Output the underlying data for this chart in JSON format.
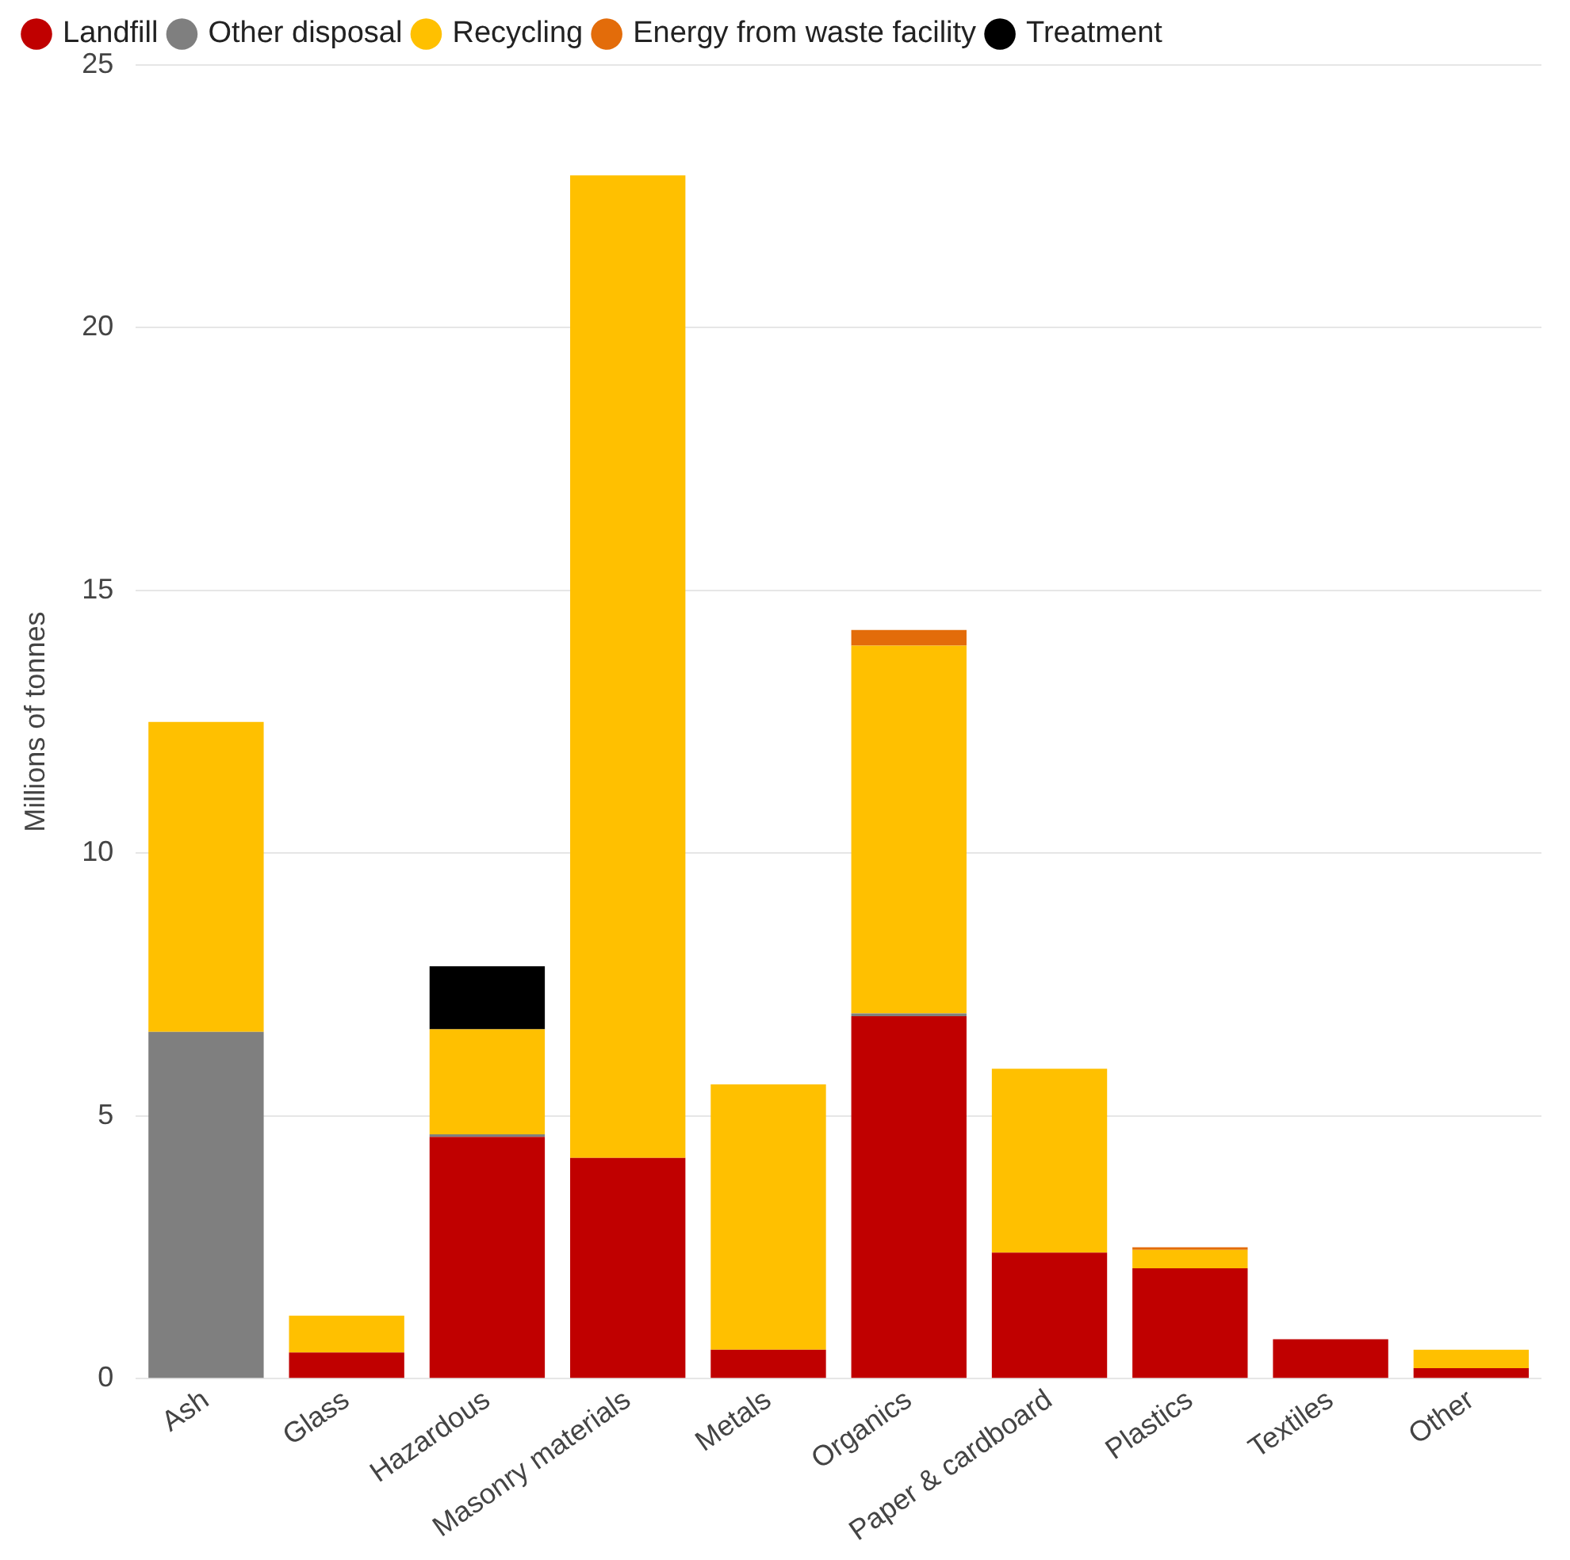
{
  "chart_data": {
    "type": "bar",
    "stacked": true,
    "ylabel": "Millions of tonnes",
    "categories": [
      "Ash",
      "Glass",
      "Hazardous",
      "Masonry materials",
      "Metals",
      "Organics",
      "Paper & cardboard",
      "Plastics",
      "Textiles",
      "Other"
    ],
    "series": [
      {
        "name": "Landfill",
        "color": "#c00000",
        "values": [
          null,
          0.5,
          4.6,
          4.2,
          0.55,
          6.9,
          2.4,
          2.1,
          0.75,
          0.2
        ]
      },
      {
        "name": "Other disposal",
        "color": "#7f7f7f",
        "values": [
          6.6,
          null,
          0.05,
          null,
          null,
          0.05,
          null,
          null,
          null,
          null
        ]
      },
      {
        "name": "Recycling",
        "color": "#ffc000",
        "values": [
          5.9,
          0.7,
          2.0,
          18.7,
          5.05,
          7.0,
          3.5,
          0.35,
          null,
          0.35
        ]
      },
      {
        "name": "Energy from waste facility",
        "color": "#e36c0a",
        "values": [
          null,
          null,
          null,
          null,
          null,
          0.3,
          null,
          0.05,
          null,
          null
        ]
      },
      {
        "name": "Treatment",
        "color": "#000000",
        "values": [
          null,
          null,
          1.2,
          null,
          null,
          null,
          null,
          null,
          null,
          null
        ]
      }
    ],
    "ylim": [
      0,
      25
    ],
    "yticks": [
      0,
      5,
      10,
      15,
      20,
      25
    ],
    "grid": "y",
    "legend": "top left"
  }
}
